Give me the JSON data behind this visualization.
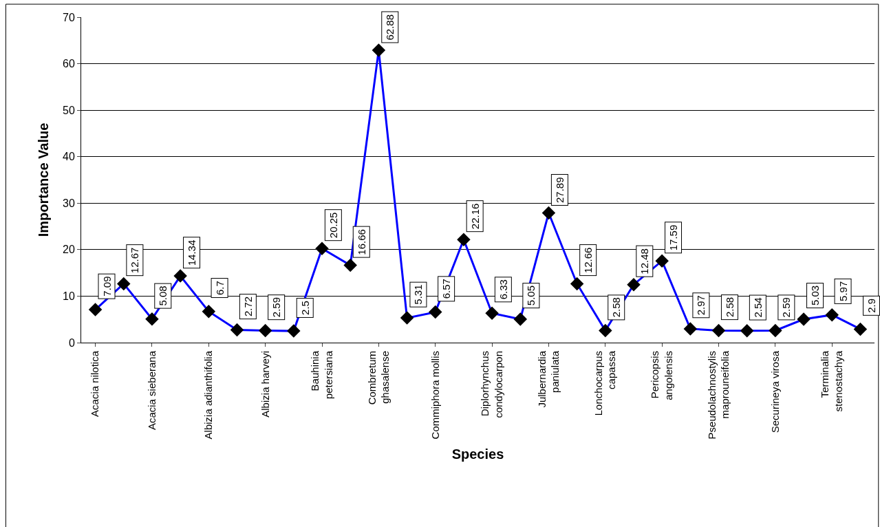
{
  "chart_data": {
    "type": "line",
    "xlabel": "Species",
    "ylabel": "Importance Value",
    "categories": [
      "Acacia nilotica",
      null,
      "Acacia sieberana",
      null,
      "Albizia adianthifolia",
      null,
      "Albizia harveyi",
      null,
      "Bauhinia\npetersiana",
      null,
      "Combretum\nghasalense",
      null,
      "Commiphora mollis",
      null,
      "Diplorhynchus\ncondylocarpon",
      null,
      "Julbernardia\npaniulata",
      null,
      "Lonchocarpus\ncapassa",
      null,
      "Pericopsis\nangolensis",
      null,
      "Pseudolachnostylis\nmaprouneifolia",
      null,
      "Securineya virosa",
      null,
      "Terminalia\nstenostachya",
      null
    ],
    "series": [
      {
        "color": "#0000ff",
        "values": [
          7.09,
          12.67,
          5.08,
          14.34,
          6.7,
          2.72,
          2.59,
          2.5,
          20.25,
          16.66,
          62.88,
          5.31,
          6.57,
          22.16,
          6.33,
          5.05,
          27.89,
          12.66,
          2.58,
          12.48,
          17.59,
          2.97,
          2.58,
          2.54,
          2.59,
          5.03,
          5.97,
          2.9
        ]
      }
    ],
    "ylim": [
      0,
      70
    ],
    "yticks": [
      0,
      10,
      20,
      30,
      40,
      50,
      60,
      70
    ],
    "grid": "y",
    "marker": "diamond",
    "line_style": "solid",
    "data_labels": true
  }
}
